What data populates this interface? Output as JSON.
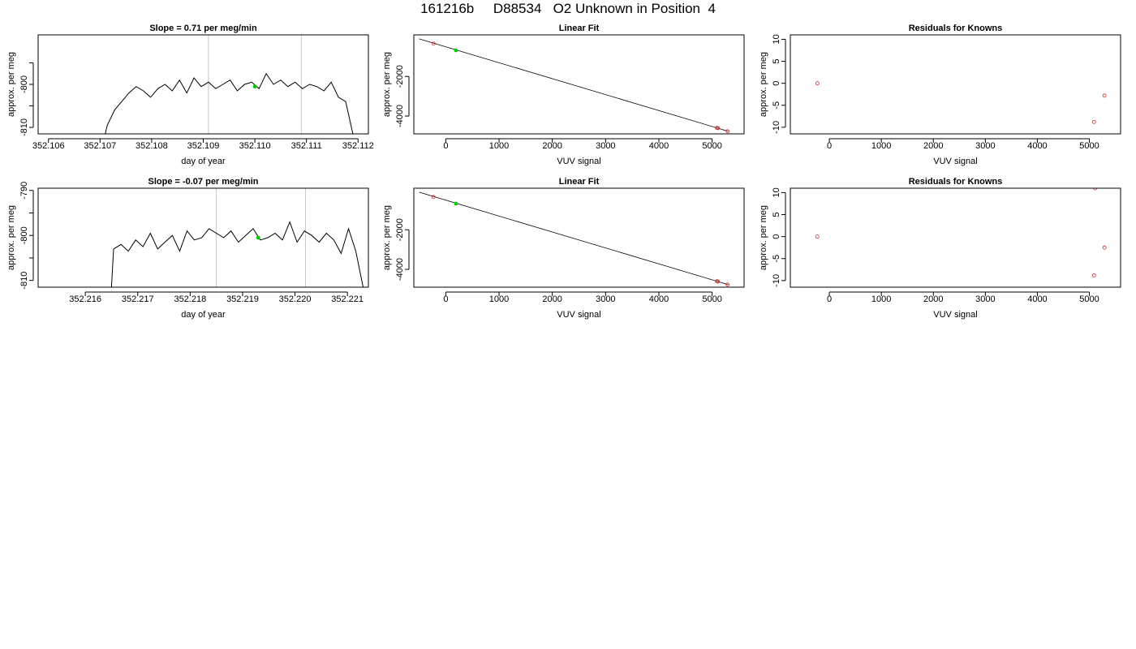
{
  "page": {
    "title": "161216b     D88534   O2 Unknown in Position  4"
  },
  "colors": {
    "axis": "#000000",
    "trace": "#000000",
    "marker_vline": "#c8c8c8",
    "green_point": "#00cc00",
    "red_point": "#cc2222"
  },
  "chart_data": [
    {
      "id": "ts1",
      "type": "line",
      "title": "Slope =  0.71  per meg/min",
      "xlabel": "day of year",
      "ylabel": "approx. per meg",
      "xlim": [
        352.1058,
        352.1122
      ],
      "ylim": [
        -811.5,
        -788.5
      ],
      "xticks": [
        352.106,
        352.107,
        352.108,
        352.109,
        352.11,
        352.111,
        352.112
      ],
      "xtick_labels": [
        "352.106",
        "352.107",
        "352.108",
        "352.109",
        "352.110",
        "352.111",
        "352.112"
      ],
      "yticks": [
        -810,
        -805,
        -800,
        -795
      ],
      "ytick_labels": [
        "-810",
        "",
        "-800",
        ""
      ],
      "vlines": [
        352.1091,
        352.1109
      ],
      "series": [
        {
          "values_x": [
            352.1071,
            352.10714,
            352.10728,
            352.10742,
            352.10756,
            352.1077,
            352.10784,
            352.10798,
            352.10812,
            352.10826,
            352.1084,
            352.10854,
            352.10868,
            352.10882,
            352.10896,
            352.1091,
            352.10924,
            352.10938,
            352.10952,
            352.10966,
            352.1098,
            352.10994,
            352.11008,
            352.11022,
            352.11036,
            352.1105,
            352.11064,
            352.11078,
            352.11092,
            352.11106,
            352.1112,
            352.11134,
            352.11148,
            352.11162,
            352.11176,
            352.1119
          ],
          "values_y": [
            -811.5,
            -809.5,
            -806,
            -804,
            -802,
            -800.5,
            -801.5,
            -803,
            -801,
            -800,
            -801.5,
            -799,
            -802,
            -798.5,
            -800.5,
            -799.5,
            -801,
            -800,
            -799,
            -801.5,
            -800,
            -799.5,
            -801,
            -797.5,
            -800,
            -799,
            -800.5,
            -799.5,
            -801,
            -800,
            -800.5,
            -801.5,
            -799.5,
            -803,
            -804,
            -811.5
          ]
        }
      ],
      "points": [
        {
          "x": 352.11,
          "y": -800.5,
          "color": "green"
        }
      ]
    },
    {
      "id": "fit1",
      "type": "scatter",
      "title": "Linear Fit",
      "xlabel": "VUV signal",
      "ylabel": "approx. per meg",
      "xlim": [
        -600,
        5600
      ],
      "ylim": [
        -4900,
        100
      ],
      "xticks": [
        0,
        1000,
        2000,
        3000,
        4000,
        5000
      ],
      "xtick_labels": [
        "0",
        "1000",
        "2000",
        "3000",
        "4000",
        "5000"
      ],
      "yticks": [
        -4000,
        -2000
      ],
      "ytick_labels": [
        "-4000",
        "-2000"
      ],
      "line": {
        "x": [
          -500,
          5300
        ],
        "y": [
          -100,
          -4770
        ]
      },
      "points": [
        {
          "x": -230,
          "y": -340,
          "color": "red"
        },
        {
          "x": 190,
          "y": -680,
          "color": "green"
        },
        {
          "x": 5090,
          "y": -4600,
          "color": "red"
        },
        {
          "x": 5110,
          "y": -4610,
          "color": "red"
        },
        {
          "x": 5290,
          "y": -4770,
          "color": "red"
        }
      ]
    },
    {
      "id": "res1",
      "type": "scatter",
      "title": "Residuals for Knowns",
      "xlabel": "VUV signal",
      "ylabel": "approx. per meg",
      "xlim": [
        -750,
        5600
      ],
      "ylim": [
        -11.5,
        11
      ],
      "xticks": [
        0,
        1000,
        2000,
        3000,
        4000,
        5000
      ],
      "xtick_labels": [
        "0",
        "1000",
        "2000",
        "3000",
        "4000",
        "5000"
      ],
      "yticks": [
        -10,
        -5,
        0,
        5,
        10
      ],
      "ytick_labels": [
        "-10",
        "-5",
        "0",
        "5",
        "10"
      ],
      "points": [
        {
          "x": -230,
          "y": 0,
          "color": "red"
        },
        {
          "x": 5090,
          "y": -8.8,
          "color": "red"
        },
        {
          "x": 5290,
          "y": -2.8,
          "color": "red"
        }
      ]
    },
    {
      "id": "ts2",
      "type": "line",
      "title": "Slope =  -0.07  per meg/min",
      "xlabel": "day of year",
      "ylabel": "approx. per meg",
      "xlim": [
        352.2151,
        352.2214
      ],
      "ylim": [
        -811.5,
        -789.5
      ],
      "xticks": [
        352.216,
        352.217,
        352.218,
        352.219,
        352.22,
        352.221
      ],
      "xtick_labels": [
        "352.216",
        "352.217",
        "352.218",
        "352.219",
        "352.220",
        "352.221"
      ],
      "yticks": [
        -810,
        -805,
        -800,
        -795,
        -790
      ],
      "ytick_labels": [
        "-810",
        "",
        "-800",
        "",
        "-790"
      ],
      "vlines": [
        352.2185,
        352.2202
      ],
      "series": [
        {
          "values_x": [
            352.2165,
            352.21654,
            352.21668,
            352.21682,
            352.21696,
            352.2171,
            352.21724,
            352.21738,
            352.21752,
            352.21766,
            352.2178,
            352.21794,
            352.21808,
            352.21822,
            352.21836,
            352.2185,
            352.21864,
            352.21878,
            352.21892,
            352.21906,
            352.2192,
            352.21934,
            352.21948,
            352.21962,
            352.21976,
            352.2199,
            352.22004,
            352.22018,
            352.22032,
            352.22046,
            352.2206,
            352.22074,
            352.22088,
            352.22102,
            352.22116,
            352.2213
          ],
          "values_y": [
            -811.5,
            -803,
            -802,
            -803.5,
            -801,
            -802.5,
            -799.5,
            -803,
            -801.5,
            -800,
            -803.5,
            -799,
            -801,
            -800.5,
            -798.5,
            -799.5,
            -800.5,
            -799,
            -801.5,
            -800,
            -798.5,
            -801,
            -800.5,
            -799.5,
            -801,
            -797,
            -801.5,
            -799,
            -800,
            -801.5,
            -799.5,
            -801,
            -804,
            -798.5,
            -803.5,
            -811.5
          ]
        }
      ],
      "points": [
        {
          "x": 352.2193,
          "y": -800.5,
          "color": "green"
        }
      ]
    },
    {
      "id": "fit2",
      "type": "scatter",
      "title": "Linear Fit",
      "xlabel": "VUV signal",
      "ylabel": "approx. per meg",
      "xlim": [
        -600,
        5600
      ],
      "ylim": [
        -4900,
        100
      ],
      "xticks": [
        0,
        1000,
        2000,
        3000,
        4000,
        5000
      ],
      "xtick_labels": [
        "0",
        "1000",
        "2000",
        "3000",
        "4000",
        "5000"
      ],
      "yticks": [
        -4000,
        -2000
      ],
      "ytick_labels": [
        "-4000",
        "-2000"
      ],
      "line": {
        "x": [
          -500,
          5300
        ],
        "y": [
          -100,
          -4770
        ]
      },
      "points": [
        {
          "x": -230,
          "y": -340,
          "color": "red"
        },
        {
          "x": 190,
          "y": -680,
          "color": "green"
        },
        {
          "x": 5090,
          "y": -4600,
          "color": "red"
        },
        {
          "x": 5110,
          "y": -4610,
          "color": "red"
        },
        {
          "x": 5290,
          "y": -4770,
          "color": "red"
        }
      ]
    },
    {
      "id": "res2",
      "type": "scatter",
      "title": "Residuals for Knowns",
      "xlabel": "VUV signal",
      "ylabel": "approx. per meg",
      "xlim": [
        -750,
        5600
      ],
      "ylim": [
        -11.5,
        11
      ],
      "xticks": [
        0,
        1000,
        2000,
        3000,
        4000,
        5000
      ],
      "xtick_labels": [
        "0",
        "1000",
        "2000",
        "3000",
        "4000",
        "5000"
      ],
      "yticks": [
        -10,
        -5,
        0,
        5,
        10
      ],
      "ytick_labels": [
        "-10",
        "-5",
        "0",
        "5",
        "10"
      ],
      "points": [
        {
          "x": -230,
          "y": 0,
          "color": "red"
        },
        {
          "x": 5090,
          "y": -8.8,
          "color": "red"
        },
        {
          "x": 5290,
          "y": -2.5,
          "color": "red"
        },
        {
          "x": 5110,
          "y": 11,
          "color": "red"
        }
      ]
    }
  ]
}
